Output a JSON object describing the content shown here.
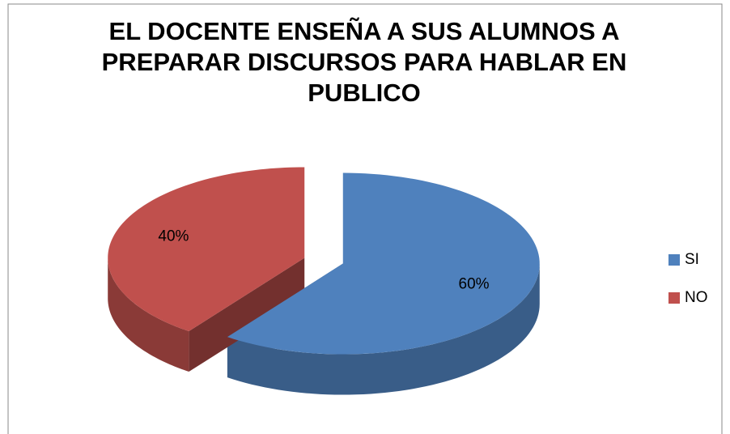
{
  "chart_data": {
    "type": "pie",
    "title": "EL DOCENTE ENSEÑA A SUS ALUMNOS A PREPARAR DISCURSOS  PARA HABLAR EN PUBLICO",
    "categories": [
      "SI",
      "NO"
    ],
    "values": [
      60,
      40
    ],
    "value_labels": [
      "60%",
      "40%"
    ],
    "colors": [
      "#4f81bd",
      "#c0504d"
    ],
    "legend": "right"
  }
}
